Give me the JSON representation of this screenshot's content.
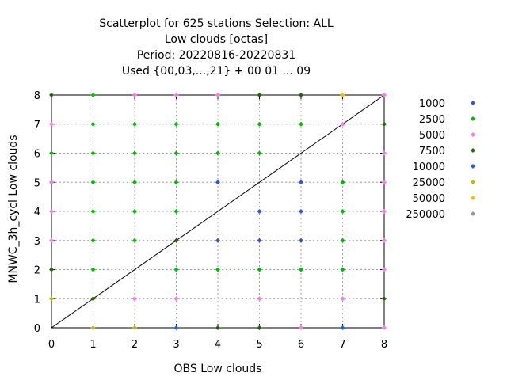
{
  "chart_data": {
    "type": "scatter",
    "title_lines": [
      "Scatterplot for  625 stations Selection: ALL",
      "Low clouds [octas]",
      "Period: 20220816-20220831",
      "Used {00,03,...,21} + 00 01 ... 09"
    ],
    "xlabel": "OBS Low clouds",
    "ylabel": "MNWC_3h_cycl Low clouds",
    "xlim": [
      0,
      8
    ],
    "ylim": [
      0,
      8
    ],
    "xticks": [
      "0",
      "1",
      "2",
      "3",
      "4",
      "5",
      "6",
      "7",
      "8"
    ],
    "yticks": [
      "0",
      "1",
      "2",
      "3",
      "4",
      "5",
      "6",
      "7",
      "8"
    ],
    "grid": true,
    "legend_position": "right",
    "diagonal_line": true,
    "series": [
      {
        "name": "1000",
        "color": "#3355dd",
        "points": [
          [
            4,
            5
          ],
          [
            6,
            5
          ],
          [
            5,
            4
          ],
          [
            6,
            4
          ],
          [
            4,
            3
          ],
          [
            5,
            3
          ],
          [
            6,
            3
          ]
        ]
      },
      {
        "name": "2500",
        "color": "#00bb00",
        "points": [
          [
            1,
            8
          ],
          [
            1,
            7
          ],
          [
            2,
            7
          ],
          [
            3,
            7
          ],
          [
            4,
            7
          ],
          [
            5,
            7
          ],
          [
            6,
            7
          ],
          [
            0,
            6
          ],
          [
            1,
            6
          ],
          [
            2,
            6
          ],
          [
            3,
            6
          ],
          [
            4,
            6
          ],
          [
            5,
            6
          ],
          [
            0,
            5
          ],
          [
            1,
            5
          ],
          [
            2,
            5
          ],
          [
            3,
            5
          ],
          [
            7,
            5
          ],
          [
            1,
            4
          ],
          [
            2,
            4
          ],
          [
            3,
            4
          ],
          [
            7,
            4
          ],
          [
            1,
            3
          ],
          [
            2,
            3
          ],
          [
            7,
            3
          ],
          [
            1,
            2
          ],
          [
            3,
            2
          ],
          [
            4,
            2
          ],
          [
            5,
            2
          ],
          [
            6,
            2
          ],
          [
            7,
            2
          ]
        ]
      },
      {
        "name": "5000",
        "color": "#ff77ee",
        "points": [
          [
            2,
            8
          ],
          [
            3,
            8
          ],
          [
            4,
            8
          ],
          [
            6,
            8
          ],
          [
            8,
            8
          ],
          [
            0,
            7
          ],
          [
            7,
            7
          ],
          [
            8,
            6
          ],
          [
            0,
            5
          ],
          [
            8,
            5
          ],
          [
            0,
            4
          ],
          [
            8,
            4
          ],
          [
            0,
            3
          ],
          [
            8,
            3
          ],
          [
            8,
            2
          ],
          [
            2,
            1
          ],
          [
            3,
            1
          ],
          [
            5,
            1
          ],
          [
            7,
            1
          ],
          [
            5,
            0
          ],
          [
            6,
            0
          ],
          [
            8,
            0
          ]
        ]
      },
      {
        "name": "7500",
        "color": "#226600",
        "points": [
          [
            0,
            8
          ],
          [
            5,
            8
          ],
          [
            6,
            8
          ],
          [
            8,
            7
          ],
          [
            3,
            3
          ],
          [
            0,
            2
          ],
          [
            1,
            1
          ],
          [
            8,
            1
          ],
          [
            4,
            0
          ],
          [
            5,
            0
          ]
        ]
      },
      {
        "name": "10000",
        "color": "#1166ee",
        "points": [
          [
            3,
            0
          ],
          [
            7,
            0
          ]
        ]
      },
      {
        "name": "25000",
        "color": "#bbbb00",
        "points": [
          [
            7,
            8
          ],
          [
            0,
            1
          ],
          [
            1,
            0
          ],
          [
            2,
            0
          ]
        ]
      },
      {
        "name": "50000",
        "color": "#ffbb00",
        "points": [
          [
            7,
            8
          ]
        ]
      },
      {
        "name": "250000",
        "color": "#999999",
        "points": []
      }
    ]
  }
}
